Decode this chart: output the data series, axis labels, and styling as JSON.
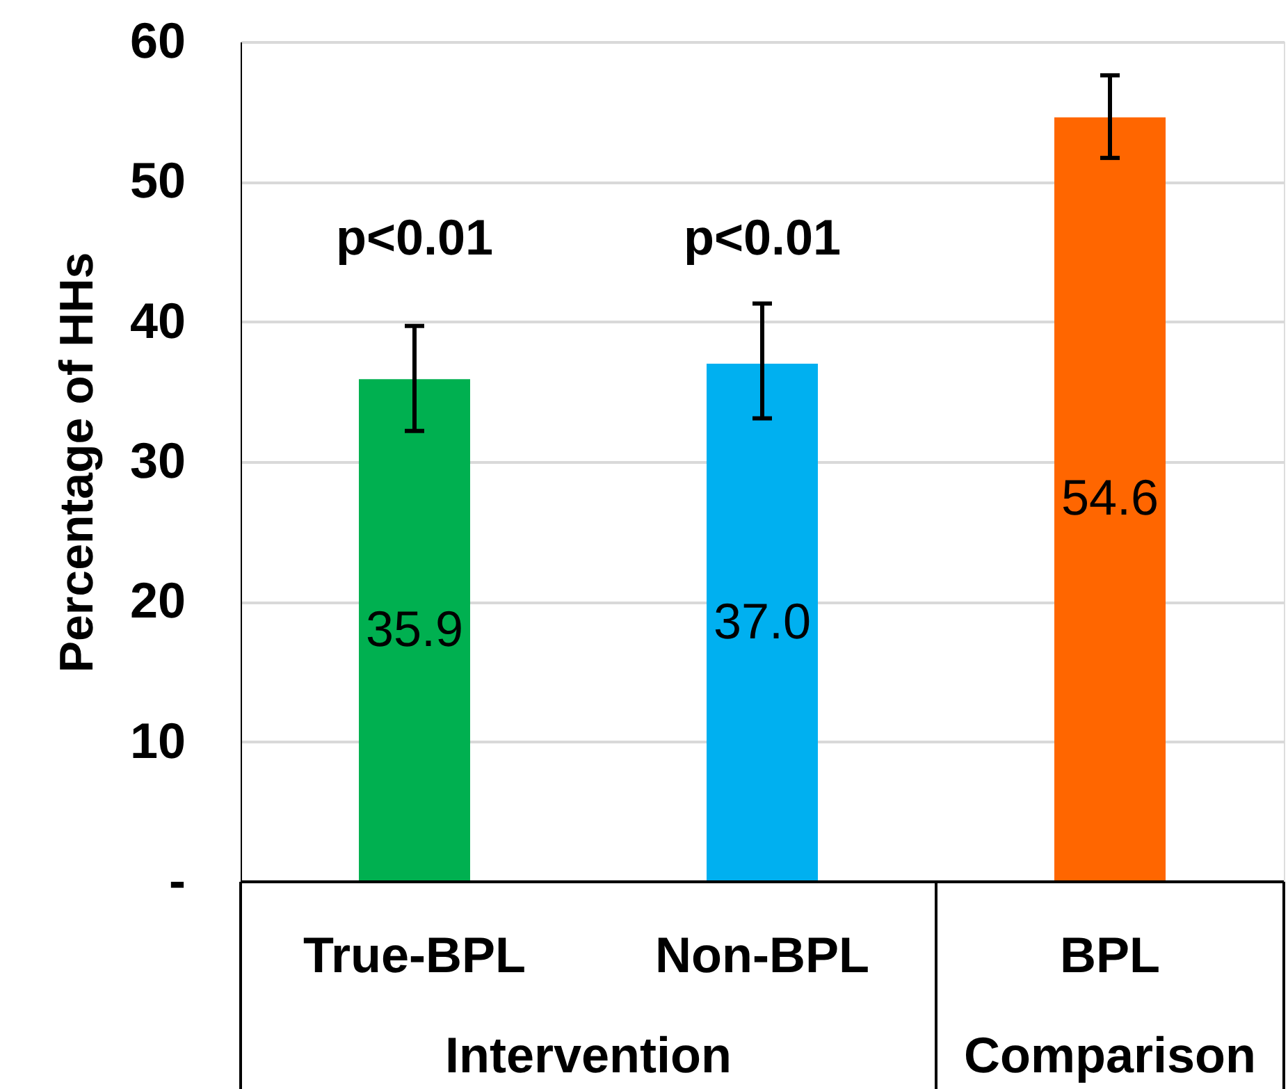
{
  "chart_data": {
    "type": "bar",
    "ylabel": "Percentage of HHs",
    "categories": [
      "True-BPL",
      "Non-BPL",
      "BPL"
    ],
    "values": [
      35.9,
      37.0,
      54.6
    ],
    "colors": [
      "#00b050",
      "#00b0f0",
      "#ff6600"
    ],
    "errors": [
      [
        32.2,
        39.7
      ],
      [
        33.1,
        41.3
      ],
      [
        51.7,
        57.6
      ]
    ],
    "value_labels": [
      "35.9",
      "37.0",
      "54.6"
    ],
    "ylim": [
      0,
      60
    ],
    "yticks": [
      {
        "value": 0,
        "label": "-"
      },
      10,
      20,
      30,
      40,
      50,
      60
    ],
    "grid": "y",
    "annotations": [
      "p<0.01",
      "p<0.01",
      "Intervention",
      "Comparison"
    ]
  }
}
